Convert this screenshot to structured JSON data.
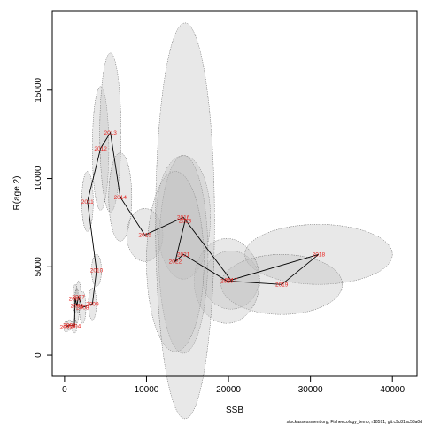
{
  "chart_data": {
    "type": "scatter",
    "title": "",
    "xlabel": "SSB",
    "ylabel": "R(age 2)",
    "xlim": [
      -1500,
      43000
    ],
    "ylim": [
      -1200,
      19500
    ],
    "x_ticks": [
      0,
      10000,
      20000,
      30000,
      40000
    ],
    "x_tick_labels": [
      "0",
      "10000",
      "20000",
      "30000",
      "40000"
    ],
    "y_ticks": [
      0,
      5000,
      10000,
      15000
    ],
    "y_tick_labels": [
      "0",
      "5000",
      "10000",
      "15000"
    ],
    "grid": false,
    "connected_path": true,
    "colors": {
      "ellipse_fill": "#bdbdbd",
      "ellipse_stroke": "#555555",
      "path": "#000000",
      "year_label": "#e8231f"
    },
    "points": [
      {
        "year": "2002",
        "ssb": 200,
        "rec": 1600,
        "sd_ssb": 300,
        "sd_rec": 300
      },
      {
        "year": "2003",
        "ssb": 600,
        "rec": 1700,
        "sd_ssb": 300,
        "sd_rec": 300
      },
      {
        "year": "2004",
        "ssb": 1200,
        "rec": 1650,
        "sd_ssb": 300,
        "sd_rec": 400
      },
      {
        "year": "2005",
        "ssb": 1300,
        "rec": 3200,
        "sd_ssb": 300,
        "sd_rec": 800
      },
      {
        "year": "2006",
        "ssb": 1500,
        "rec": 2800,
        "sd_ssb": 300,
        "sd_rec": 1000
      },
      {
        "year": "2007",
        "ssb": 1700,
        "rec": 3300,
        "sd_ssb": 300,
        "sd_rec": 900
      },
      {
        "year": "2008",
        "ssb": 2200,
        "rec": 2700,
        "sd_ssb": 400,
        "sd_rec": 900
      },
      {
        "year": "2009",
        "ssb": 3400,
        "rec": 2900,
        "sd_ssb": 500,
        "sd_rec": 900
      },
      {
        "year": "2010",
        "ssb": 3900,
        "rec": 4800,
        "sd_ssb": 600,
        "sd_rec": 900
      },
      {
        "year": "2011",
        "ssb": 2800,
        "rec": 8700,
        "sd_ssb": 700,
        "sd_rec": 1700
      },
      {
        "year": "2012",
        "ssb": 4400,
        "rec": 11700,
        "sd_ssb": 1000,
        "sd_rec": 3500
      },
      {
        "year": "2013",
        "ssb": 5600,
        "rec": 12600,
        "sd_ssb": 1300,
        "sd_rec": 4500
      },
      {
        "year": "2014",
        "ssb": 6800,
        "rec": 8950,
        "sd_ssb": 1400,
        "sd_rec": 2500
      },
      {
        "year": "2015",
        "ssb": 9800,
        "rec": 6800,
        "sd_ssb": 2200,
        "sd_rec": 1500
      },
      {
        "year": "2016",
        "ssb": 14500,
        "rec": 7800,
        "sd_ssb": 3300,
        "sd_rec": 3500
      },
      {
        "year": "2017",
        "ssb": 20300,
        "rec": 4250,
        "sd_ssb": 3400,
        "sd_rec": 1650
      },
      {
        "year": "2018",
        "ssb": 31000,
        "rec": 5700,
        "sd_ssb": 9000,
        "sd_rec": 1700
      },
      {
        "year": "2019",
        "ssb": 26500,
        "rec": 4000,
        "sd_ssb": 7400,
        "sd_rec": 1700
      },
      {
        "year": "2020",
        "ssb": 19800,
        "rec": 4200,
        "sd_ssb": 4000,
        "sd_rec": 2400
      },
      {
        "year": "2021",
        "ssb": 14500,
        "rec": 5700,
        "sd_ssb": 3000,
        "sd_rec": 5600
      },
      {
        "year": "2022",
        "ssb": 13500,
        "rec": 5300,
        "sd_ssb": 3500,
        "sd_rec": 5100
      },
      {
        "year": "2023",
        "ssb": 14700,
        "rec": 7600,
        "sd_ssb": 3600,
        "sd_rec": 11200
      }
    ],
    "path_order": [
      "2002",
      "2003",
      "2004",
      "2005",
      "2006",
      "2007",
      "2008",
      "2009",
      "2010",
      "2011",
      "2012",
      "2013",
      "2014",
      "2015",
      "2016",
      "2017",
      "2018",
      "2019",
      "2020",
      "2021",
      "2022",
      "2023"
    ],
    "footer_text": "stockassessment.org, Fisheecology_temp, r18591, git:c9c81ac53a0d"
  }
}
